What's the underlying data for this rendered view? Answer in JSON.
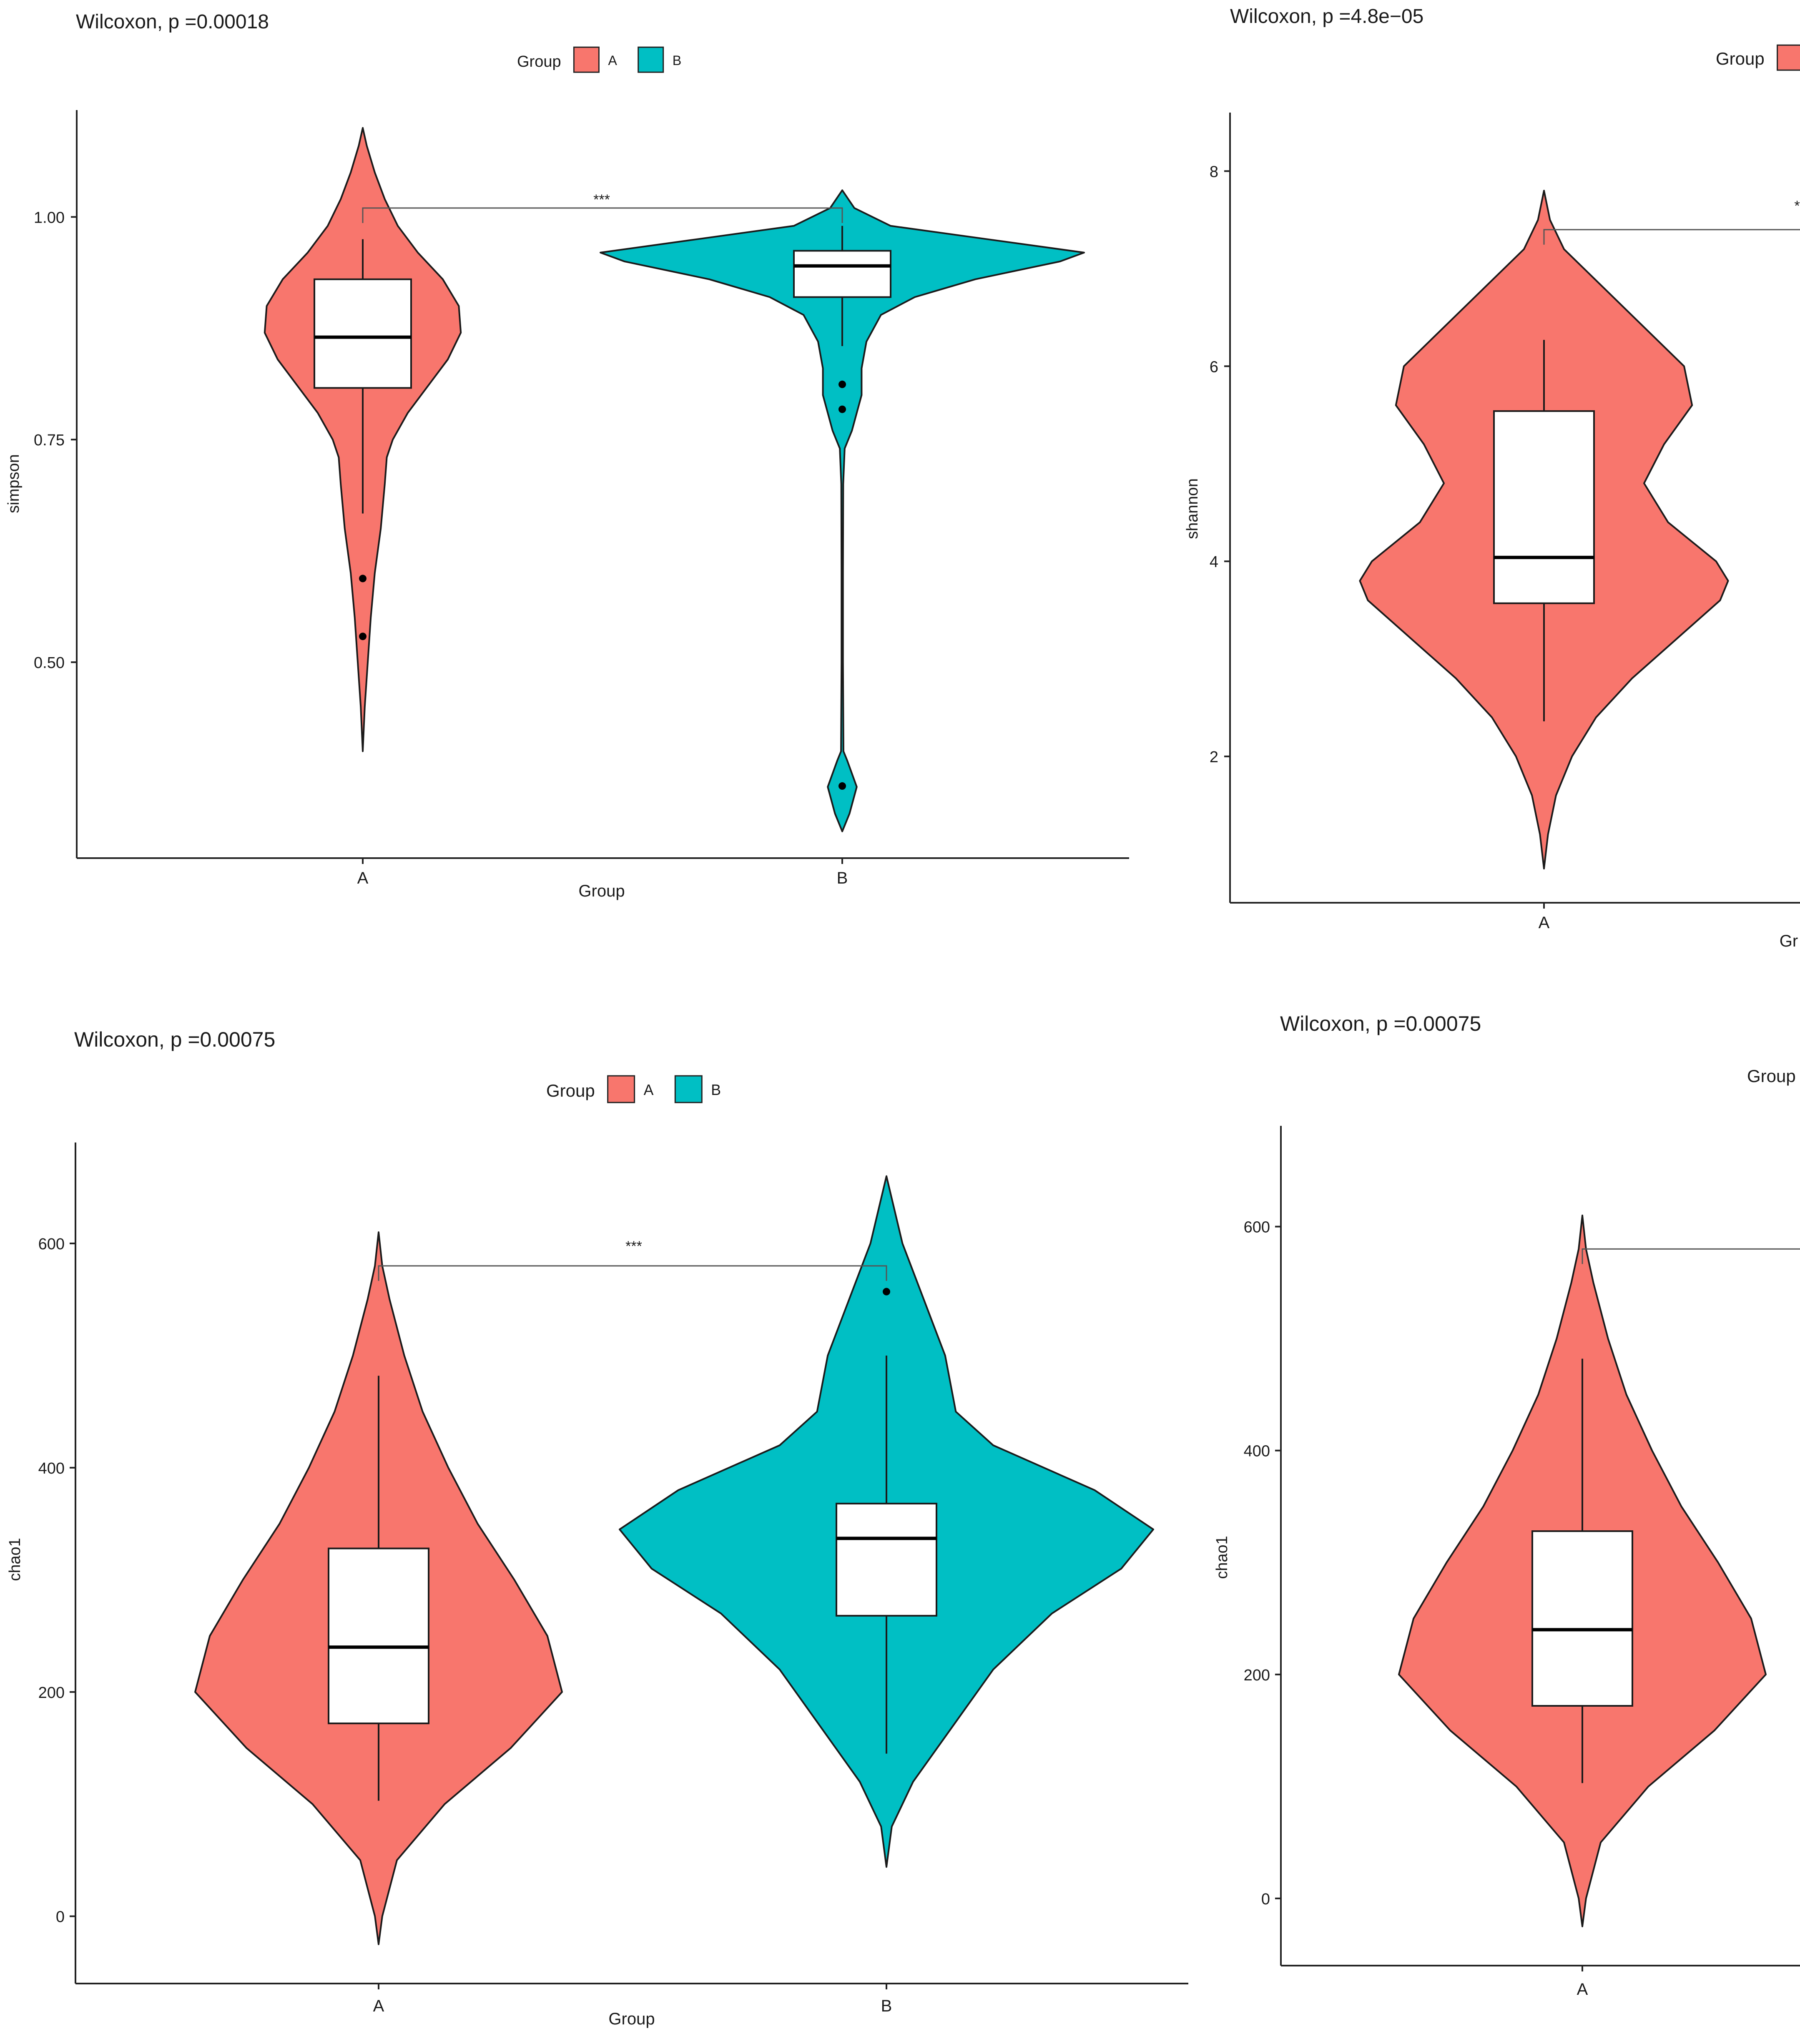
{
  "chart_data": [
    {
      "type": "violin",
      "title": "Wilcoxon, p =0.00018",
      "xlabel": "Group",
      "ylabel": "simpson",
      "legend": {
        "title": "Group",
        "position": "top",
        "entries": [
          "A",
          "B"
        ]
      },
      "ylim": [
        0.28,
        1.12
      ],
      "yticks": [
        0.5,
        0.75,
        1.0
      ],
      "ytick_labels": [
        "0.50",
        "0.75",
        "1.00"
      ],
      "categories": [
        "A",
        "B"
      ],
      "significance": {
        "label": "***",
        "y": 1.01
      },
      "series": [
        {
          "name": "A",
          "color": "#F8766D",
          "box": {
            "q1": 0.808,
            "median": 0.865,
            "q3": 0.93,
            "whisker_low": 0.667,
            "whisker_high": 0.975
          },
          "outliers": [
            0.594,
            0.529
          ],
          "violin": [
            [
              0.4,
              0
            ],
            [
              0.45,
              0.02
            ],
            [
              0.5,
              0.05
            ],
            [
              0.55,
              0.08
            ],
            [
              0.6,
              0.12
            ],
            [
              0.65,
              0.18
            ],
            [
              0.7,
              0.22
            ],
            [
              0.73,
              0.24
            ],
            [
              0.75,
              0.3
            ],
            [
              0.78,
              0.45
            ],
            [
              0.81,
              0.65
            ],
            [
              0.84,
              0.85
            ],
            [
              0.87,
              0.98
            ],
            [
              0.9,
              0.96
            ],
            [
              0.93,
              0.8
            ],
            [
              0.96,
              0.55
            ],
            [
              0.99,
              0.35
            ],
            [
              1.02,
              0.22
            ],
            [
              1.05,
              0.12
            ],
            [
              1.08,
              0.04
            ],
            [
              1.1,
              0
            ]
          ]
        },
        {
          "name": "B",
          "color": "#00BFC4",
          "box": {
            "q1": 0.91,
            "median": 0.945,
            "q3": 0.962,
            "whisker_low": 0.855,
            "whisker_high": 0.99
          },
          "outliers": [
            0.812,
            0.784,
            0.361
          ],
          "violin": [
            [
              0.31,
              0
            ],
            [
              0.33,
              0.03
            ],
            [
              0.36,
              0.06
            ],
            [
              0.39,
              0.02
            ],
            [
              0.4,
              0.005
            ],
            [
              0.5,
              0.003
            ],
            [
              0.6,
              0.003
            ],
            [
              0.7,
              0.004
            ],
            [
              0.74,
              0.01
            ],
            [
              0.76,
              0.04
            ],
            [
              0.78,
              0.06
            ],
            [
              0.8,
              0.08
            ],
            [
              0.83,
              0.08
            ],
            [
              0.86,
              0.1
            ],
            [
              0.89,
              0.16
            ],
            [
              0.91,
              0.3
            ],
            [
              0.93,
              0.55
            ],
            [
              0.95,
              0.9
            ],
            [
              0.96,
              1.0
            ],
            [
              0.975,
              0.6
            ],
            [
              0.99,
              0.2
            ],
            [
              1.01,
              0.05
            ],
            [
              1.03,
              0
            ]
          ]
        }
      ]
    },
    {
      "type": "violin",
      "title": "Wilcoxon, p =4.8e−05",
      "xlabel": "Gr",
      "ylabel": "shannon",
      "legend": {
        "title": "Group",
        "position": "top",
        "entries": [
          "A"
        ]
      },
      "ylim": [
        0.5,
        8.6
      ],
      "yticks": [
        2,
        4,
        6,
        8
      ],
      "ytick_labels": [
        "2",
        "4",
        "6",
        "8"
      ],
      "categories": [
        "A"
      ],
      "significance": {
        "label": "*",
        "y": 7.4
      },
      "series": [
        {
          "name": "A",
          "color": "#F8766D",
          "box": {
            "q1": 3.57,
            "median": 4.04,
            "q3": 5.54,
            "whisker_low": 2.36,
            "whisker_high": 6.27
          },
          "outliers": [],
          "violin": [
            [
              0.85,
              0
            ],
            [
              1.2,
              0.02
            ],
            [
              1.6,
              0.06
            ],
            [
              2.0,
              0.14
            ],
            [
              2.4,
              0.26
            ],
            [
              2.8,
              0.44
            ],
            [
              3.2,
              0.66
            ],
            [
              3.6,
              0.88
            ],
            [
              3.8,
              0.92
            ],
            [
              4.0,
              0.86
            ],
            [
              4.4,
              0.62
            ],
            [
              4.8,
              0.5
            ],
            [
              5.2,
              0.6
            ],
            [
              5.6,
              0.74
            ],
            [
              6.0,
              0.7
            ],
            [
              6.4,
              0.5
            ],
            [
              6.8,
              0.3
            ],
            [
              7.2,
              0.1
            ],
            [
              7.5,
              0.03
            ],
            [
              7.8,
              0
            ]
          ]
        }
      ]
    },
    {
      "type": "violin",
      "title": "Wilcoxon, p =0.00075",
      "xlabel": "Group",
      "ylabel": "chao1",
      "legend": {
        "title": "Group",
        "position": "top",
        "entries": [
          "A",
          "B"
        ]
      },
      "ylim": [
        -60,
        690
      ],
      "yticks": [
        0,
        200,
        400,
        600
      ],
      "ytick_labels": [
        "0",
        "200",
        "400",
        "600"
      ],
      "categories": [
        "A",
        "B"
      ],
      "significance": {
        "label": "***",
        "y": 580
      },
      "series": [
        {
          "name": "A",
          "color": "#F8766D",
          "box": {
            "q1": 172,
            "median": 240,
            "q3": 328,
            "whisker_low": 103,
            "whisker_high": 482
          },
          "outliers": [],
          "violin": [
            [
              -25,
              0
            ],
            [
              0,
              0.02
            ],
            [
              50,
              0.1
            ],
            [
              100,
              0.36
            ],
            [
              150,
              0.72
            ],
            [
              200,
              1.0
            ],
            [
              250,
              0.92
            ],
            [
              300,
              0.74
            ],
            [
              350,
              0.54
            ],
            [
              400,
              0.38
            ],
            [
              450,
              0.24
            ],
            [
              500,
              0.14
            ],
            [
              550,
              0.06
            ],
            [
              580,
              0.02
            ],
            [
              610,
              0
            ]
          ]
        },
        {
          "name": "B",
          "color": "#00BFC4",
          "box": {
            "q1": 268,
            "median": 337,
            "q3": 368,
            "whisker_low": 145,
            "whisker_high": 500
          },
          "outliers": [
            557
          ],
          "violin": [
            [
              44,
              0
            ],
            [
              80,
              0.02
            ],
            [
              120,
              0.1
            ],
            [
              170,
              0.25
            ],
            [
              220,
              0.4
            ],
            [
              270,
              0.62
            ],
            [
              310,
              0.88
            ],
            [
              345,
              1.0
            ],
            [
              380,
              0.78
            ],
            [
              420,
              0.4
            ],
            [
              450,
              0.26
            ],
            [
              500,
              0.22
            ],
            [
              550,
              0.14
            ],
            [
              600,
              0.06
            ],
            [
              640,
              0.02
            ],
            [
              660,
              0
            ]
          ]
        }
      ]
    },
    {
      "type": "violin",
      "title": "Wilcoxon, p =0.00075",
      "xlabel": "",
      "ylabel": "chao1",
      "legend": {
        "title": "Group",
        "position": "top",
        "entries": []
      },
      "ylim": [
        -60,
        690
      ],
      "yticks": [
        0,
        200,
        400,
        600
      ],
      "ytick_labels": [
        "0",
        "200",
        "400",
        "600"
      ],
      "categories": [
        "A"
      ],
      "significance": {
        "label": "",
        "y": 580
      },
      "series": [
        {
          "name": "A",
          "color": "#F8766D",
          "box": {
            "q1": 172,
            "median": 240,
            "q3": 328,
            "whisker_low": 103,
            "whisker_high": 482
          },
          "outliers": [],
          "violin": [
            [
              -25,
              0
            ],
            [
              0,
              0.02
            ],
            [
              50,
              0.1
            ],
            [
              100,
              0.36
            ],
            [
              150,
              0.72
            ],
            [
              200,
              1.0
            ],
            [
              250,
              0.92
            ],
            [
              300,
              0.74
            ],
            [
              350,
              0.54
            ],
            [
              400,
              0.38
            ],
            [
              450,
              0.24
            ],
            [
              500,
              0.14
            ],
            [
              550,
              0.06
            ],
            [
              580,
              0.02
            ],
            [
              610,
              0
            ]
          ]
        }
      ]
    }
  ]
}
